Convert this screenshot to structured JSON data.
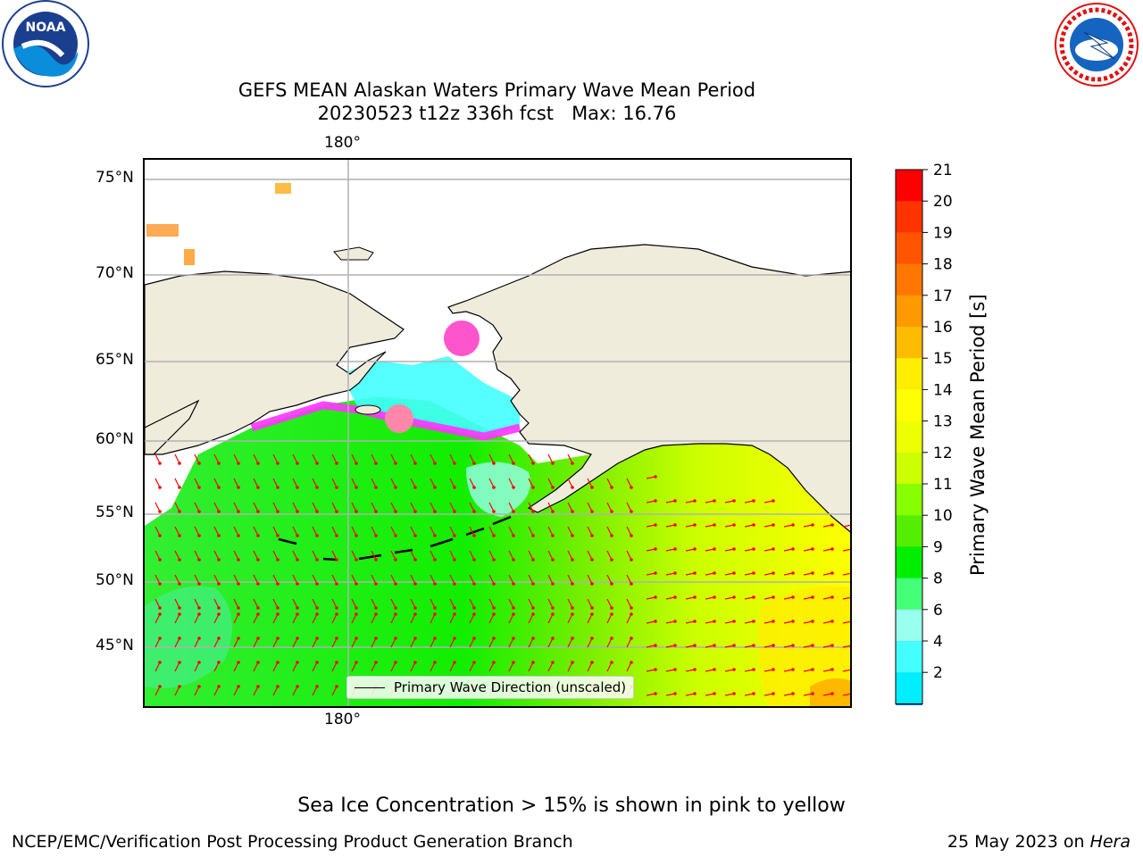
{
  "title": {
    "line1": "GEFS MEAN Alaskan Waters Primary Wave Mean Period",
    "line2": "20230523 t12z 336h fcst   Max: 16.76"
  },
  "logos": {
    "left": {
      "name": "noaa-logo",
      "text": "NOAA"
    },
    "right": {
      "name": "nws-logo",
      "text": "NATIONAL WEATHER SERVICE"
    }
  },
  "map": {
    "lon_label_top": "180°",
    "lon_label_bottom": "180°",
    "lat_labels": [
      "75°N",
      "70°N",
      "65°N",
      "60°N",
      "55°N",
      "50°N",
      "45°N"
    ],
    "legend_label": "Primary Wave Direction (unscaled)",
    "colors": {
      "land": "#efecdc",
      "coast": "#000000",
      "grid": "#b0b0b0",
      "arrow": "#ff0000",
      "ice_pink": "#ff33ff",
      "ice_orange": "#ffaa44"
    }
  },
  "colorbar": {
    "label": "Primary Wave Mean Period [s]",
    "ticks": [
      "21",
      "20",
      "19",
      "18",
      "17",
      "16",
      "15",
      "14",
      "13",
      "12",
      "11",
      "10",
      "9",
      "8",
      "6",
      "4",
      "2"
    ],
    "colors": [
      "#ff0000",
      "#ff3300",
      "#ff5500",
      "#ff7700",
      "#ff9900",
      "#ffbb00",
      "#ffee00",
      "#ffff00",
      "#eeff00",
      "#ccff00",
      "#88ff00",
      "#55ee00",
      "#00ee00",
      "#44ff77",
      "#99ffee",
      "#44ffff",
      "#00eeff",
      "#0077ff"
    ],
    "extend_color": "#0000ff"
  },
  "caption": "Sea Ice Concentration > 15% is shown in pink to yellow",
  "footer": {
    "left": "NCEP/EMC/Verification Post Processing Product Generation Branch",
    "right_date": "25 May 2023 on ",
    "right_host": "Hera"
  }
}
